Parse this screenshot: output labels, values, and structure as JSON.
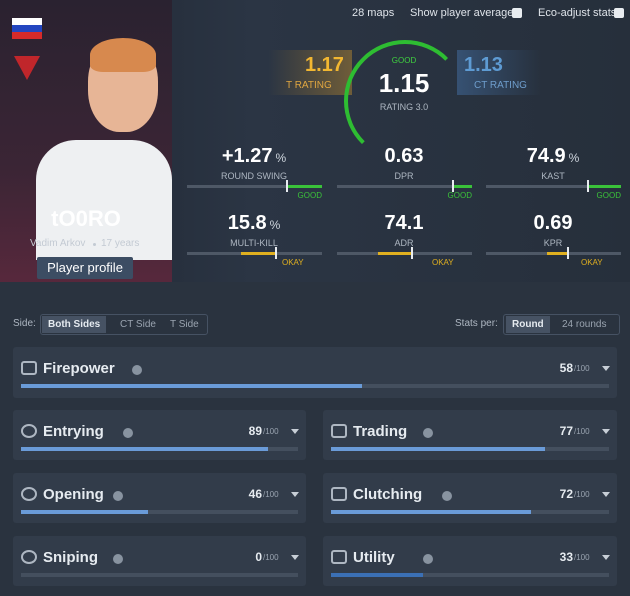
{
  "top_bar": {
    "maps": "28 maps",
    "show_average": "Show player average",
    "eco_adjust": "Eco-adjust stats"
  },
  "player": {
    "name": "tO0RO",
    "real_name": "Vadim Arkov",
    "age": "17 years",
    "profile_button": "Player profile"
  },
  "ratings": {
    "t": {
      "value": "1.17",
      "label": "T RATING"
    },
    "main": {
      "verdict": "GOOD",
      "value": "1.15",
      "label": "RATING 3.0"
    },
    "ct": {
      "value": "1.13",
      "label": "CT RATING"
    }
  },
  "stats": [
    {
      "value": "+1.27",
      "unit": "%",
      "label": "ROUND SWING",
      "verdict": "GOOD"
    },
    {
      "value": "0.63",
      "label": "DPR",
      "verdict": "GOOD"
    },
    {
      "value": "74.9",
      "unit": "%",
      "label": "KAST",
      "verdict": "GOOD"
    },
    {
      "value": "15.8",
      "unit": "%",
      "label": "MULTI-KILL",
      "verdict": "OKAY"
    },
    {
      "value": "74.1",
      "label": "ADR",
      "verdict": "OKAY"
    },
    {
      "value": "0.69",
      "label": "KPR",
      "verdict": "OKAY"
    }
  ],
  "filters": {
    "side_label": "Side:",
    "sides": [
      "Both Sides",
      "CT Side",
      "T Side"
    ],
    "per_label": "Stats per:",
    "per": [
      "Round",
      "24 rounds"
    ]
  },
  "categories": [
    {
      "name": "Firepower",
      "score": 58,
      "max": "/100"
    },
    {
      "name": "Entrying",
      "score": 89,
      "max": "/100"
    },
    {
      "name": "Trading",
      "score": 77,
      "max": "/100"
    },
    {
      "name": "Opening",
      "score": 46,
      "max": "/100"
    },
    {
      "name": "Clutching",
      "score": 72,
      "max": "/100"
    },
    {
      "name": "Sniping",
      "score": 0,
      "max": "/100"
    },
    {
      "name": "Utility",
      "score": 33,
      "max": "/100"
    }
  ]
}
